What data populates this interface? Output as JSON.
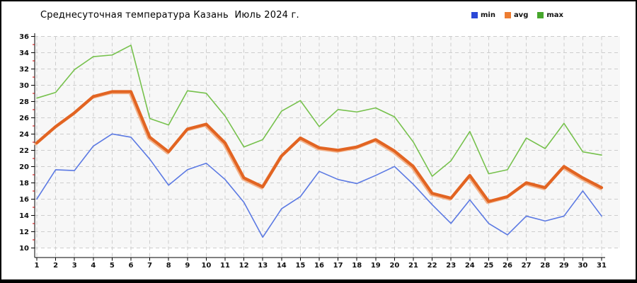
{
  "chart_data": {
    "type": "line",
    "title": "Среднесуточная температура Казань  Июль 2024 г.",
    "x": [
      1,
      2,
      3,
      4,
      5,
      6,
      7,
      8,
      9,
      10,
      11,
      12,
      13,
      14,
      15,
      16,
      17,
      18,
      19,
      20,
      21,
      22,
      23,
      24,
      25,
      26,
      27,
      28,
      29,
      30,
      31
    ],
    "ylim": [
      10,
      36
    ],
    "ytick_major_step": 2,
    "ytick_minor_step": 1,
    "grid": true,
    "legend_position": "top-right",
    "series": [
      {
        "name": "min",
        "color": "#5b79e3",
        "swatch": "#2b48d7",
        "values": [
          16.0,
          19.6,
          19.5,
          22.5,
          24.0,
          23.6,
          20.9,
          17.7,
          19.6,
          20.4,
          18.4,
          15.6,
          11.3,
          14.8,
          16.3,
          19.4,
          18.4,
          17.9,
          18.9,
          20.0,
          17.8,
          15.3,
          13.0,
          15.9,
          13.0,
          11.6,
          13.9,
          13.3,
          13.9,
          17.0,
          13.9
        ]
      },
      {
        "name": "avg",
        "color": "#e26422",
        "swatch": "#ed7d31",
        "halo": "#f2b38c",
        "values": [
          22.9,
          24.9,
          26.6,
          28.6,
          29.2,
          29.2,
          23.6,
          21.8,
          24.6,
          25.2,
          22.9,
          18.6,
          17.5,
          21.3,
          23.5,
          22.3,
          22.0,
          22.4,
          23.3,
          21.9,
          20.0,
          16.7,
          16.1,
          18.9,
          15.7,
          16.3,
          18.0,
          17.4,
          20.0,
          18.6,
          17.4
        ]
      },
      {
        "name": "max",
        "color": "#76c14c",
        "swatch": "#46a62c",
        "values": [
          28.4,
          29.1,
          31.9,
          33.5,
          33.7,
          34.9,
          25.9,
          25.1,
          29.3,
          29.0,
          26.2,
          22.4,
          23.3,
          26.8,
          28.1,
          24.9,
          27.0,
          26.7,
          27.2,
          26.1,
          23.0,
          18.8,
          20.7,
          24.3,
          19.1,
          19.6,
          23.5,
          22.2,
          25.3,
          21.8,
          21.4
        ]
      }
    ],
    "style_colors": {
      "plot_bg": "#f7f7f7",
      "grid": "#cdcdcd",
      "axis": "#000000",
      "minor_tick": "#cc0000",
      "frame": "#000000"
    }
  }
}
